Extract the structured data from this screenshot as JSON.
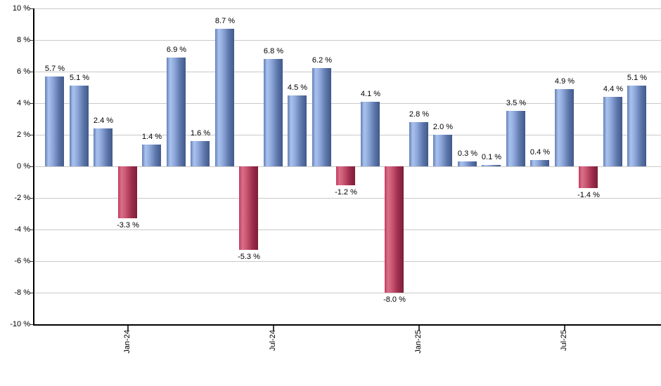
{
  "chart_data": {
    "type": "bar",
    "title": "",
    "xlabel": "",
    "ylabel": "",
    "ylim": [
      -10,
      10
    ],
    "grid": true,
    "legend": "none",
    "y_ticks": [
      {
        "value": 10,
        "label": "10 %"
      },
      {
        "value": 8,
        "label": "8 %"
      },
      {
        "value": 6,
        "label": "6 %"
      },
      {
        "value": 4,
        "label": "4 %"
      },
      {
        "value": 2,
        "label": "2 %"
      },
      {
        "value": 0,
        "label": "0 %"
      },
      {
        "value": -2,
        "label": "-2 %"
      },
      {
        "value": -4,
        "label": "-4 %"
      },
      {
        "value": -6,
        "label": "-6 %"
      },
      {
        "value": -8,
        "label": "-8 %"
      },
      {
        "value": -10,
        "label": "-10 %"
      }
    ],
    "x_ticks": [
      {
        "bar_index": 3,
        "label": "Jan-24"
      },
      {
        "bar_index": 9,
        "label": "Jul-24"
      },
      {
        "bar_index": 15,
        "label": "Jan-25"
      },
      {
        "bar_index": 21,
        "label": "Jul-25"
      }
    ],
    "bars": [
      {
        "value": 5.7,
        "label": "5.7 %"
      },
      {
        "value": 5.1,
        "label": "5.1 %"
      },
      {
        "value": 2.4,
        "label": "2.4 %"
      },
      {
        "value": -3.3,
        "label": "-3.3 %"
      },
      {
        "value": 1.4,
        "label": "1.4 %"
      },
      {
        "value": 6.9,
        "label": "6.9 %"
      },
      {
        "value": 1.6,
        "label": "1.6 %"
      },
      {
        "value": 8.7,
        "label": "8.7 %"
      },
      {
        "value": -5.3,
        "label": "-5.3 %"
      },
      {
        "value": 6.8,
        "label": "6.8 %"
      },
      {
        "value": 4.5,
        "label": "4.5 %"
      },
      {
        "value": 6.2,
        "label": "6.2 %"
      },
      {
        "value": -1.2,
        "label": "-1.2 %"
      },
      {
        "value": 4.1,
        "label": "4.1 %"
      },
      {
        "value": -8.0,
        "label": "-8.0 %"
      },
      {
        "value": 2.8,
        "label": "2.8 %"
      },
      {
        "value": 2.0,
        "label": "2.0 %"
      },
      {
        "value": 0.3,
        "label": "0.3 %"
      },
      {
        "value": 0.1,
        "label": "0.1 %"
      },
      {
        "value": 3.5,
        "label": "3.5 %"
      },
      {
        "value": 0.4,
        "label": "0.4 %"
      },
      {
        "value": 4.9,
        "label": "4.9 %"
      },
      {
        "value": -1.4,
        "label": "-1.4 %"
      },
      {
        "value": 4.4,
        "label": "4.4 %"
      },
      {
        "value": 5.1,
        "label": "5.1 %"
      }
    ],
    "colors": {
      "positive_light": "#a9c3ef",
      "positive_mid": "#6d8cc4",
      "positive_dark": "#41598a",
      "negative_light": "#da7089",
      "negative_mid": "#c04366",
      "negative_dark": "#7c1f39",
      "gridline": "#c9c9c9",
      "axis": "#000000",
      "text": "#000000",
      "background": "#ffffff"
    }
  }
}
